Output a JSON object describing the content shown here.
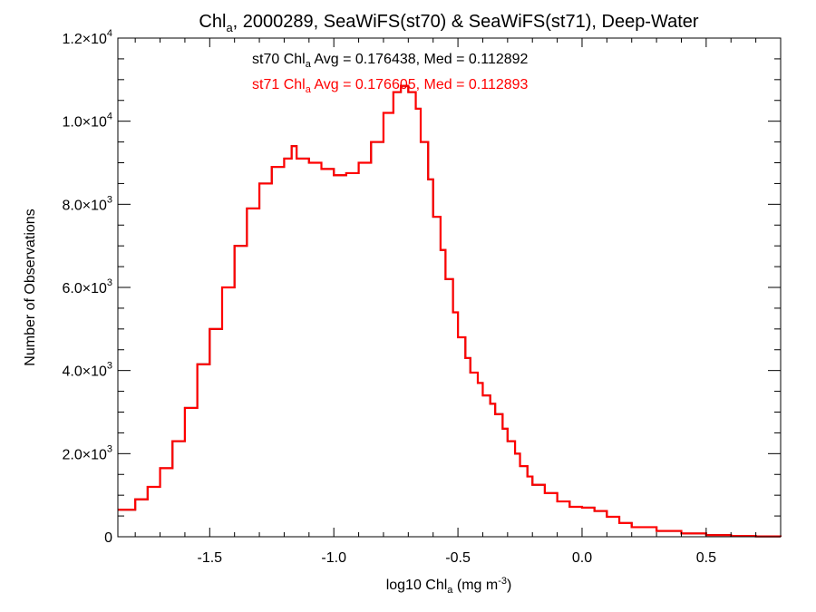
{
  "chart_data": {
    "type": "line",
    "title": {
      "prefix": "Chl",
      "sub": "a",
      "suffix": ", 2000289, SeaWiFS(st70) & SeaWiFS(st71), Deep-Water"
    },
    "xlabel": {
      "prefix": "log10 Chl",
      "sub": "a",
      "mid": " (mg m",
      "sup": "-3",
      "suffix": ")"
    },
    "ylabel": "Number of Observations",
    "xlim": [
      -1.87,
      0.8
    ],
    "ylim": [
      0,
      12000
    ],
    "x_ticks": [
      {
        "value": -1.5,
        "label": "-1.5"
      },
      {
        "value": -1.0,
        "label": "-1.0"
      },
      {
        "value": -0.5,
        "label": "-0.5"
      },
      {
        "value": 0.0,
        "label": "0.0"
      },
      {
        "value": 0.5,
        "label": "0.5"
      }
    ],
    "y_ticks": [
      {
        "value": 0,
        "mantissa": "0",
        "exp": ""
      },
      {
        "value": 2000,
        "mantissa": "2.0×10",
        "exp": "3"
      },
      {
        "value": 4000,
        "mantissa": "4.0×10",
        "exp": "3"
      },
      {
        "value": 6000,
        "mantissa": "6.0×10",
        "exp": "3"
      },
      {
        "value": 8000,
        "mantissa": "8.0×10",
        "exp": "3"
      },
      {
        "value": 10000,
        "mantissa": "1.0×10",
        "exp": "4"
      },
      {
        "value": 12000,
        "mantissa": "1.2×10",
        "exp": "4"
      }
    ],
    "annotations": [
      {
        "name": "st70",
        "prefix": "st70 Chl",
        "sub": "a",
        "suffix": " Avg = 0.176438, Med = 0.112892",
        "color": "#000000"
      },
      {
        "name": "st71",
        "prefix": "st71 Chl",
        "sub": "a",
        "suffix": " Avg = 0.176605, Med = 0.112893",
        "color": "#ff0000"
      }
    ],
    "series": [
      {
        "name": "st70",
        "color": "#000000",
        "points": [
          [
            -1.87,
            650
          ],
          [
            -1.8,
            900
          ],
          [
            -1.75,
            1200
          ],
          [
            -1.7,
            1650
          ],
          [
            -1.65,
            2300
          ],
          [
            -1.6,
            3100
          ],
          [
            -1.55,
            4150
          ],
          [
            -1.5,
            5000
          ],
          [
            -1.45,
            6000
          ],
          [
            -1.4,
            7000
          ],
          [
            -1.35,
            7900
          ],
          [
            -1.3,
            8500
          ],
          [
            -1.25,
            8900
          ],
          [
            -1.2,
            9100
          ],
          [
            -1.17,
            9400
          ],
          [
            -1.15,
            9100
          ],
          [
            -1.1,
            9000
          ],
          [
            -1.05,
            8850
          ],
          [
            -1.0,
            8700
          ],
          [
            -0.95,
            8750
          ],
          [
            -0.9,
            9000
          ],
          [
            -0.85,
            9500
          ],
          [
            -0.8,
            10200
          ],
          [
            -0.76,
            10700
          ],
          [
            -0.73,
            10850
          ],
          [
            -0.7,
            10700
          ],
          [
            -0.67,
            10300
          ],
          [
            -0.65,
            9500
          ],
          [
            -0.62,
            8600
          ],
          [
            -0.6,
            7700
          ],
          [
            -0.57,
            6900
          ],
          [
            -0.55,
            6200
          ],
          [
            -0.52,
            5400
          ],
          [
            -0.5,
            4800
          ],
          [
            -0.47,
            4300
          ],
          [
            -0.45,
            3950
          ],
          [
            -0.42,
            3700
          ],
          [
            -0.4,
            3400
          ],
          [
            -0.37,
            3200
          ],
          [
            -0.35,
            2950
          ],
          [
            -0.32,
            2600
          ],
          [
            -0.3,
            2300
          ],
          [
            -0.27,
            2000
          ],
          [
            -0.25,
            1700
          ],
          [
            -0.22,
            1450
          ],
          [
            -0.2,
            1250
          ],
          [
            -0.15,
            1050
          ],
          [
            -0.1,
            850
          ],
          [
            -0.05,
            720
          ],
          [
            0.0,
            700
          ],
          [
            0.05,
            620
          ],
          [
            0.1,
            480
          ],
          [
            0.15,
            330
          ],
          [
            0.2,
            230
          ],
          [
            0.3,
            140
          ],
          [
            0.4,
            80
          ],
          [
            0.5,
            40
          ],
          [
            0.6,
            20
          ],
          [
            0.7,
            8
          ],
          [
            0.8,
            2
          ]
        ]
      },
      {
        "name": "st71",
        "color": "#ff0000",
        "points": [
          [
            -1.87,
            650
          ],
          [
            -1.8,
            900
          ],
          [
            -1.75,
            1200
          ],
          [
            -1.7,
            1650
          ],
          [
            -1.65,
            2300
          ],
          [
            -1.6,
            3100
          ],
          [
            -1.55,
            4150
          ],
          [
            -1.5,
            5000
          ],
          [
            -1.45,
            6000
          ],
          [
            -1.4,
            7000
          ],
          [
            -1.35,
            7900
          ],
          [
            -1.3,
            8500
          ],
          [
            -1.25,
            8900
          ],
          [
            -1.2,
            9100
          ],
          [
            -1.17,
            9400
          ],
          [
            -1.15,
            9100
          ],
          [
            -1.1,
            9000
          ],
          [
            -1.05,
            8850
          ],
          [
            -1.0,
            8700
          ],
          [
            -0.95,
            8750
          ],
          [
            -0.9,
            9000
          ],
          [
            -0.85,
            9500
          ],
          [
            -0.8,
            10200
          ],
          [
            -0.76,
            10700
          ],
          [
            -0.73,
            10850
          ],
          [
            -0.7,
            10700
          ],
          [
            -0.67,
            10300
          ],
          [
            -0.65,
            9500
          ],
          [
            -0.62,
            8600
          ],
          [
            -0.6,
            7700
          ],
          [
            -0.57,
            6900
          ],
          [
            -0.55,
            6200
          ],
          [
            -0.52,
            5400
          ],
          [
            -0.5,
            4800
          ],
          [
            -0.47,
            4300
          ],
          [
            -0.45,
            3950
          ],
          [
            -0.42,
            3700
          ],
          [
            -0.4,
            3400
          ],
          [
            -0.37,
            3200
          ],
          [
            -0.35,
            2950
          ],
          [
            -0.32,
            2600
          ],
          [
            -0.3,
            2300
          ],
          [
            -0.27,
            2000
          ],
          [
            -0.25,
            1700
          ],
          [
            -0.22,
            1450
          ],
          [
            -0.2,
            1250
          ],
          [
            -0.15,
            1050
          ],
          [
            -0.1,
            850
          ],
          [
            -0.05,
            720
          ],
          [
            0.0,
            700
          ],
          [
            0.05,
            620
          ],
          [
            0.1,
            480
          ],
          [
            0.15,
            330
          ],
          [
            0.2,
            230
          ],
          [
            0.3,
            140
          ],
          [
            0.4,
            80
          ],
          [
            0.5,
            40
          ],
          [
            0.6,
            20
          ],
          [
            0.7,
            8
          ],
          [
            0.8,
            2
          ]
        ]
      }
    ]
  }
}
